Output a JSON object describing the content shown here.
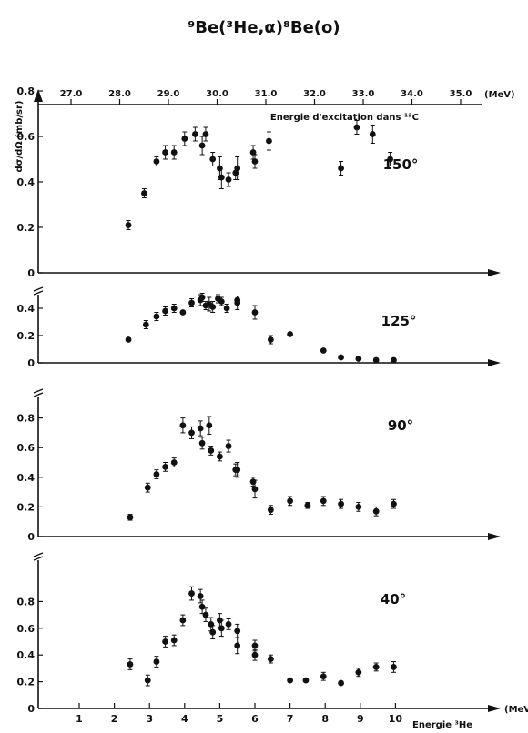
{
  "title": "⁹Be(³He,α)⁸Be(o)",
  "top_axis": {
    "ticks": [
      "27.0",
      "28.0",
      "29.0",
      "30.0",
      "31.0",
      "32.0",
      "33.0",
      "34.0",
      "35.0"
    ],
    "unit": "(MeV)",
    "label": "Energie d'excitation dans ¹²C"
  },
  "ylabel": "dσ/dΩ (mb/sr)",
  "bottom_axis": {
    "ticks": [
      "1",
      "2",
      "3",
      "4",
      "5",
      "6",
      "7",
      "8",
      "9",
      "10"
    ],
    "unit": "(MeV)",
    "label": "Energie ³He"
  },
  "chart_data": [
    {
      "type": "scatter",
      "angle_label": "150°",
      "xlim": [
        0,
        11.2
      ],
      "ylim": [
        0,
        1.1
      ],
      "yticks": [
        "0",
        "0.2",
        "0.4",
        "0.6",
        "0.8"
      ],
      "points": [
        {
          "x": 2.4,
          "y": 0.21,
          "err": 0.02
        },
        {
          "x": 2.85,
          "y": 0.35,
          "err": 0.02
        },
        {
          "x": 3.2,
          "y": 0.49,
          "err": 0.02
        },
        {
          "x": 3.45,
          "y": 0.53,
          "err": 0.03
        },
        {
          "x": 3.7,
          "y": 0.53,
          "err": 0.03
        },
        {
          "x": 4.0,
          "y": 0.59,
          "err": 0.03
        },
        {
          "x": 4.3,
          "y": 0.61,
          "err": 0.03
        },
        {
          "x": 4.5,
          "y": 0.56,
          "err": 0.04
        },
        {
          "x": 4.6,
          "y": 0.61,
          "err": 0.03
        },
        {
          "x": 4.8,
          "y": 0.5,
          "err": 0.03
        },
        {
          "x": 5.0,
          "y": 0.46,
          "err": 0.05
        },
        {
          "x": 5.05,
          "y": 0.42,
          "err": 0.05
        },
        {
          "x": 5.25,
          "y": 0.41,
          "err": 0.03
        },
        {
          "x": 5.45,
          "y": 0.44,
          "err": 0.03
        },
        {
          "x": 5.5,
          "y": 0.46,
          "err": 0.05
        },
        {
          "x": 5.95,
          "y": 0.53,
          "err": 0.03
        },
        {
          "x": 6.0,
          "y": 0.49,
          "err": 0.03
        },
        {
          "x": 6.4,
          "y": 0.58,
          "err": 0.04
        },
        {
          "x": 8.45,
          "y": 0.46,
          "err": 0.03
        },
        {
          "x": 8.9,
          "y": 0.64,
          "err": 0.03
        },
        {
          "x": 9.35,
          "y": 0.61,
          "err": 0.04
        },
        {
          "x": 9.85,
          "y": 0.5,
          "err": 0.03
        }
      ]
    },
    {
      "type": "scatter",
      "angle_label": "125°",
      "xlim": [
        0,
        11.2
      ],
      "ylim": [
        0,
        0.55
      ],
      "yticks": [
        "0",
        "0.2",
        "0.4"
      ],
      "points": [
        {
          "x": 2.4,
          "y": 0.17,
          "err": 0.02
        },
        {
          "x": 2.9,
          "y": 0.28,
          "err": 0.03
        },
        {
          "x": 3.2,
          "y": 0.34,
          "err": 0.03
        },
        {
          "x": 3.45,
          "y": 0.38,
          "err": 0.03
        },
        {
          "x": 3.7,
          "y": 0.4,
          "err": 0.03
        },
        {
          "x": 3.95,
          "y": 0.37,
          "err": 0.02
        },
        {
          "x": 4.2,
          "y": 0.44,
          "err": 0.03
        },
        {
          "x": 4.45,
          "y": 0.46,
          "err": 0.04
        },
        {
          "x": 4.5,
          "y": 0.48,
          "err": 0.03
        },
        {
          "x": 4.6,
          "y": 0.42,
          "err": 0.03
        },
        {
          "x": 4.7,
          "y": 0.43,
          "err": 0.05
        },
        {
          "x": 4.8,
          "y": 0.41,
          "err": 0.04
        },
        {
          "x": 4.95,
          "y": 0.47,
          "err": 0.03
        },
        {
          "x": 5.05,
          "y": 0.45,
          "err": 0.03
        },
        {
          "x": 5.2,
          "y": 0.4,
          "err": 0.03
        },
        {
          "x": 5.5,
          "y": 0.44,
          "err": 0.05
        },
        {
          "x": 5.5,
          "y": 0.46,
          "err": 0.03
        },
        {
          "x": 6.0,
          "y": 0.37,
          "err": 0.05
        },
        {
          "x": 6.45,
          "y": 0.17,
          "err": 0.03
        },
        {
          "x": 7.0,
          "y": 0.21,
          "err": 0.02
        },
        {
          "x": 7.95,
          "y": 0.09,
          "err": 0.01
        },
        {
          "x": 8.45,
          "y": 0.04,
          "err": 0.01
        },
        {
          "x": 8.95,
          "y": 0.03,
          "err": 0.01
        },
        {
          "x": 9.45,
          "y": 0.02,
          "err": 0.01
        },
        {
          "x": 9.95,
          "y": 0.02,
          "err": 0.01
        }
      ]
    },
    {
      "type": "scatter",
      "angle_label": "90°",
      "xlim": [
        0,
        11.2
      ],
      "ylim": [
        0,
        1.0
      ],
      "yticks": [
        "0",
        "0.2",
        "0.4",
        "0.6",
        "0.8"
      ],
      "points": [
        {
          "x": 2.45,
          "y": 0.13,
          "err": 0.02
        },
        {
          "x": 2.95,
          "y": 0.33,
          "err": 0.03
        },
        {
          "x": 3.2,
          "y": 0.42,
          "err": 0.03
        },
        {
          "x": 3.45,
          "y": 0.47,
          "err": 0.03
        },
        {
          "x": 3.7,
          "y": 0.5,
          "err": 0.03
        },
        {
          "x": 3.95,
          "y": 0.75,
          "err": 0.05
        },
        {
          "x": 4.2,
          "y": 0.7,
          "err": 0.04
        },
        {
          "x": 4.45,
          "y": 0.73,
          "err": 0.05
        },
        {
          "x": 4.5,
          "y": 0.63,
          "err": 0.04
        },
        {
          "x": 4.7,
          "y": 0.75,
          "err": 0.06
        },
        {
          "x": 4.75,
          "y": 0.58,
          "err": 0.03
        },
        {
          "x": 5.0,
          "y": 0.54,
          "err": 0.03
        },
        {
          "x": 5.25,
          "y": 0.61,
          "err": 0.04
        },
        {
          "x": 5.45,
          "y": 0.45,
          "err": 0.04
        },
        {
          "x": 5.5,
          "y": 0.45,
          "err": 0.05
        },
        {
          "x": 5.95,
          "y": 0.37,
          "err": 0.03
        },
        {
          "x": 6.0,
          "y": 0.32,
          "err": 0.06
        },
        {
          "x": 6.45,
          "y": 0.18,
          "err": 0.03
        },
        {
          "x": 7.0,
          "y": 0.24,
          "err": 0.03
        },
        {
          "x": 7.5,
          "y": 0.21,
          "err": 0.02
        },
        {
          "x": 7.95,
          "y": 0.24,
          "err": 0.03
        },
        {
          "x": 8.45,
          "y": 0.22,
          "err": 0.03
        },
        {
          "x": 8.95,
          "y": 0.2,
          "err": 0.03
        },
        {
          "x": 9.45,
          "y": 0.17,
          "err": 0.03
        },
        {
          "x": 9.95,
          "y": 0.22,
          "err": 0.03
        }
      ]
    },
    {
      "type": "scatter",
      "angle_label": "40°",
      "xlim": [
        0,
        11.2
      ],
      "ylim": [
        0,
        1.15
      ],
      "yticks": [
        "0",
        "0.2",
        "0.4",
        "0.6",
        "0.8"
      ],
      "points": [
        {
          "x": 2.45,
          "y": 0.33,
          "err": 0.04
        },
        {
          "x": 2.95,
          "y": 0.21,
          "err": 0.04
        },
        {
          "x": 3.2,
          "y": 0.35,
          "err": 0.04
        },
        {
          "x": 3.45,
          "y": 0.5,
          "err": 0.04
        },
        {
          "x": 3.7,
          "y": 0.51,
          "err": 0.04
        },
        {
          "x": 3.95,
          "y": 0.66,
          "err": 0.04
        },
        {
          "x": 4.2,
          "y": 0.86,
          "err": 0.05
        },
        {
          "x": 4.45,
          "y": 0.84,
          "err": 0.05
        },
        {
          "x": 4.5,
          "y": 0.76,
          "err": 0.05
        },
        {
          "x": 4.6,
          "y": 0.7,
          "err": 0.05
        },
        {
          "x": 4.75,
          "y": 0.63,
          "err": 0.05
        },
        {
          "x": 4.8,
          "y": 0.57,
          "err": 0.05
        },
        {
          "x": 5.0,
          "y": 0.66,
          "err": 0.05
        },
        {
          "x": 5.05,
          "y": 0.6,
          "err": 0.06
        },
        {
          "x": 5.25,
          "y": 0.63,
          "err": 0.04
        },
        {
          "x": 5.5,
          "y": 0.58,
          "err": 0.05
        },
        {
          "x": 5.5,
          "y": 0.47,
          "err": 0.06
        },
        {
          "x": 6.0,
          "y": 0.47,
          "err": 0.04
        },
        {
          "x": 6.0,
          "y": 0.4,
          "err": 0.04
        },
        {
          "x": 6.45,
          "y": 0.37,
          "err": 0.03
        },
        {
          "x": 7.0,
          "y": 0.21,
          "err": 0.02
        },
        {
          "x": 7.45,
          "y": 0.21,
          "err": 0.02
        },
        {
          "x": 7.95,
          "y": 0.24,
          "err": 0.03
        },
        {
          "x": 8.45,
          "y": 0.19,
          "err": 0.02
        },
        {
          "x": 8.95,
          "y": 0.27,
          "err": 0.03
        },
        {
          "x": 9.45,
          "y": 0.31,
          "err": 0.03
        },
        {
          "x": 9.95,
          "y": 0.31,
          "err": 0.04
        }
      ]
    }
  ]
}
